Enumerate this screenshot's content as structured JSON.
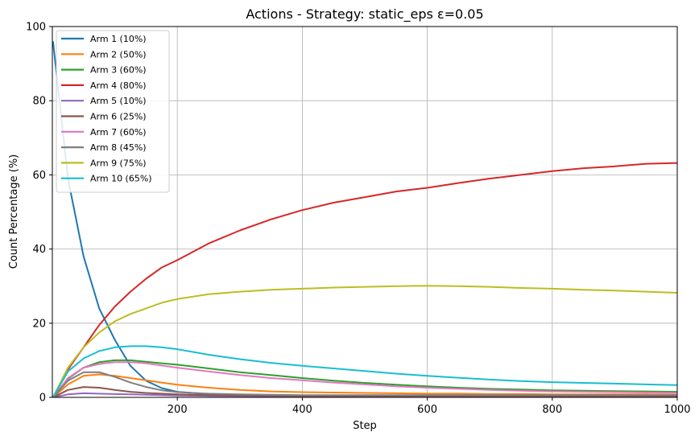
{
  "chart_data": {
    "type": "line",
    "title": "Actions - Strategy: static_eps ε=0.05",
    "xlabel": "Step",
    "ylabel": "Count Percentage (%)",
    "xlim": [
      0,
      1000
    ],
    "ylim": [
      0,
      100
    ],
    "x_ticks": [
      200,
      400,
      600,
      800,
      1000
    ],
    "y_ticks": [
      0,
      20,
      40,
      60,
      80,
      100
    ],
    "grid": true,
    "legend_position": "top-left",
    "x": [
      1,
      25,
      50,
      75,
      100,
      125,
      150,
      175,
      200,
      250,
      300,
      350,
      400,
      450,
      500,
      550,
      600,
      650,
      700,
      750,
      800,
      850,
      900,
      950,
      1000
    ],
    "series": [
      {
        "name": "Arm 1 (10%)",
        "color": "#1f77b4",
        "values": [
          96,
          59,
          38,
          24,
          15.5,
          8.5,
          4.5,
          2.5,
          1.5,
          0.9,
          0.7,
          0.6,
          0.5,
          0.5,
          0.5,
          0.5,
          0.5,
          0.5,
          0.5,
          0.5,
          0.5,
          0.5,
          0.5,
          0.5,
          0.5
        ]
      },
      {
        "name": "Arm 2 (50%)",
        "color": "#ff7f0e",
        "values": [
          0,
          3.5,
          5.8,
          6.2,
          5.8,
          5.2,
          4.6,
          4.0,
          3.4,
          2.6,
          2.0,
          1.6,
          1.4,
          1.3,
          1.2,
          1.1,
          1.0,
          1.0,
          0.9,
          0.9,
          0.8,
          0.8,
          0.8,
          0.8,
          0.7
        ]
      },
      {
        "name": "Arm 3 (60%)",
        "color": "#2ca02c",
        "values": [
          0,
          5.0,
          8.0,
          9.5,
          10.0,
          10.0,
          9.6,
          9.2,
          8.8,
          7.8,
          6.8,
          6.0,
          5.2,
          4.5,
          3.9,
          3.4,
          3.0,
          2.6,
          2.3,
          2.1,
          1.9,
          1.8,
          1.7,
          1.6,
          1.5
        ]
      },
      {
        "name": "Arm 4 (80%)",
        "color": "#d62728",
        "values": [
          0,
          7.5,
          13.5,
          19.5,
          24.5,
          28.5,
          32.0,
          35.0,
          37.0,
          41.5,
          45.0,
          48.0,
          50.5,
          52.5,
          54.0,
          55.5,
          56.5,
          57.8,
          59.0,
          60.0,
          61.0,
          61.8,
          62.3,
          63.0,
          63.2
        ]
      },
      {
        "name": "Arm 5 (10%)",
        "color": "#9467bd",
        "values": [
          0,
          0.8,
          1.1,
          1.0,
          0.9,
          0.8,
          0.7,
          0.6,
          0.5,
          0.4,
          0.35,
          0.3,
          0.3,
          0.3,
          0.3,
          0.3,
          0.3,
          0.3,
          0.3,
          0.3,
          0.3,
          0.3,
          0.3,
          0.3,
          0.3
        ]
      },
      {
        "name": "Arm 6 (25%)",
        "color": "#8c564b",
        "values": [
          0,
          2.0,
          2.8,
          2.6,
          2.0,
          1.5,
          1.2,
          1.0,
          0.8,
          0.6,
          0.5,
          0.5,
          0.4,
          0.4,
          0.4,
          0.4,
          0.4,
          0.4,
          0.4,
          0.4,
          0.4,
          0.4,
          0.4,
          0.4,
          0.4
        ]
      },
      {
        "name": "Arm 7 (60%)",
        "color": "#e377c2",
        "values": [
          0,
          5.2,
          8.0,
          9.0,
          9.5,
          9.5,
          9.2,
          8.6,
          8.0,
          7.0,
          6.0,
          5.2,
          4.6,
          4.0,
          3.5,
          3.0,
          2.6,
          2.3,
          2.0,
          1.8,
          1.6,
          1.5,
          1.4,
          1.3,
          1.2
        ]
      },
      {
        "name": "Arm 8 (45%)",
        "color": "#7f7f7f",
        "values": [
          0,
          4.5,
          6.8,
          6.8,
          5.5,
          4.0,
          2.8,
          1.9,
          1.4,
          1.0,
          0.8,
          0.7,
          0.6,
          0.6,
          0.6,
          0.6,
          0.6,
          0.6,
          0.6,
          0.6,
          0.6,
          0.6,
          0.6,
          0.6,
          0.6
        ]
      },
      {
        "name": "Arm 9 (75%)",
        "color": "#bcbd22",
        "values": [
          0,
          8.0,
          13.5,
          17.5,
          20.5,
          22.5,
          24.0,
          25.5,
          26.5,
          27.8,
          28.5,
          29.0,
          29.3,
          29.6,
          29.8,
          30.0,
          30.1,
          30.0,
          29.8,
          29.5,
          29.3,
          29.0,
          28.8,
          28.5,
          28.2
        ]
      },
      {
        "name": "Arm 10 (65%)",
        "color": "#17becf",
        "values": [
          0,
          7.0,
          10.5,
          12.5,
          13.5,
          13.8,
          13.8,
          13.5,
          13.0,
          11.5,
          10.3,
          9.3,
          8.5,
          7.8,
          7.1,
          6.4,
          5.8,
          5.3,
          4.8,
          4.4,
          4.1,
          3.9,
          3.7,
          3.5,
          3.3
        ]
      }
    ]
  }
}
